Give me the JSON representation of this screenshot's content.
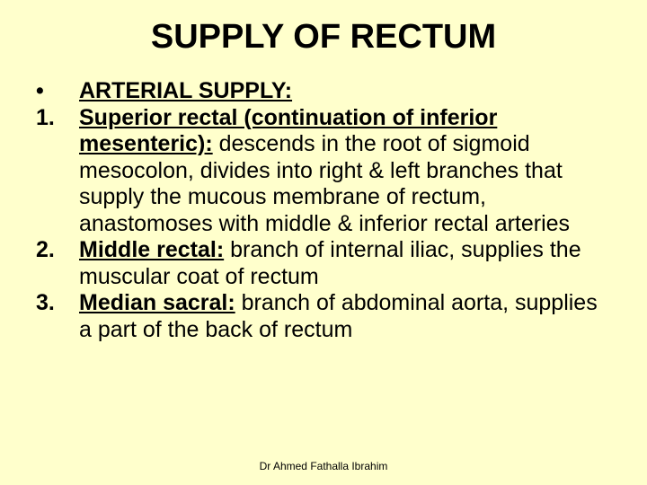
{
  "title": {
    "text": "SUPPLY OF RECTUM",
    "fontsize": 38,
    "color": "#000000",
    "weight": "bold"
  },
  "body": {
    "fontsize": 25,
    "lineheight": 1.18,
    "color": "#000000"
  },
  "items": [
    {
      "marker": "•",
      "lead": "ARTERIAL SUPPLY:",
      "rest": ""
    },
    {
      "marker": "1.",
      "lead": "Superior rectal (continuation of inferior mesenteric):",
      "rest": " descends in the root of sigmoid mesocolon, divides into right & left branches that supply the mucous membrane of rectum, anastomoses with middle & inferior rectal arteries"
    },
    {
      "marker": "2.",
      "lead": "Middle rectal:",
      "rest": " branch of internal iliac, supplies the muscular coat of rectum"
    },
    {
      "marker": "3.",
      "lead": "Median sacral:",
      "rest": " branch of abdominal aorta, supplies a part of the back of rectum"
    }
  ],
  "footer": {
    "text": "Dr Ahmed Fathalla Ibrahim",
    "fontsize": 12,
    "color": "#000000"
  },
  "background_color": "#ffffcc"
}
